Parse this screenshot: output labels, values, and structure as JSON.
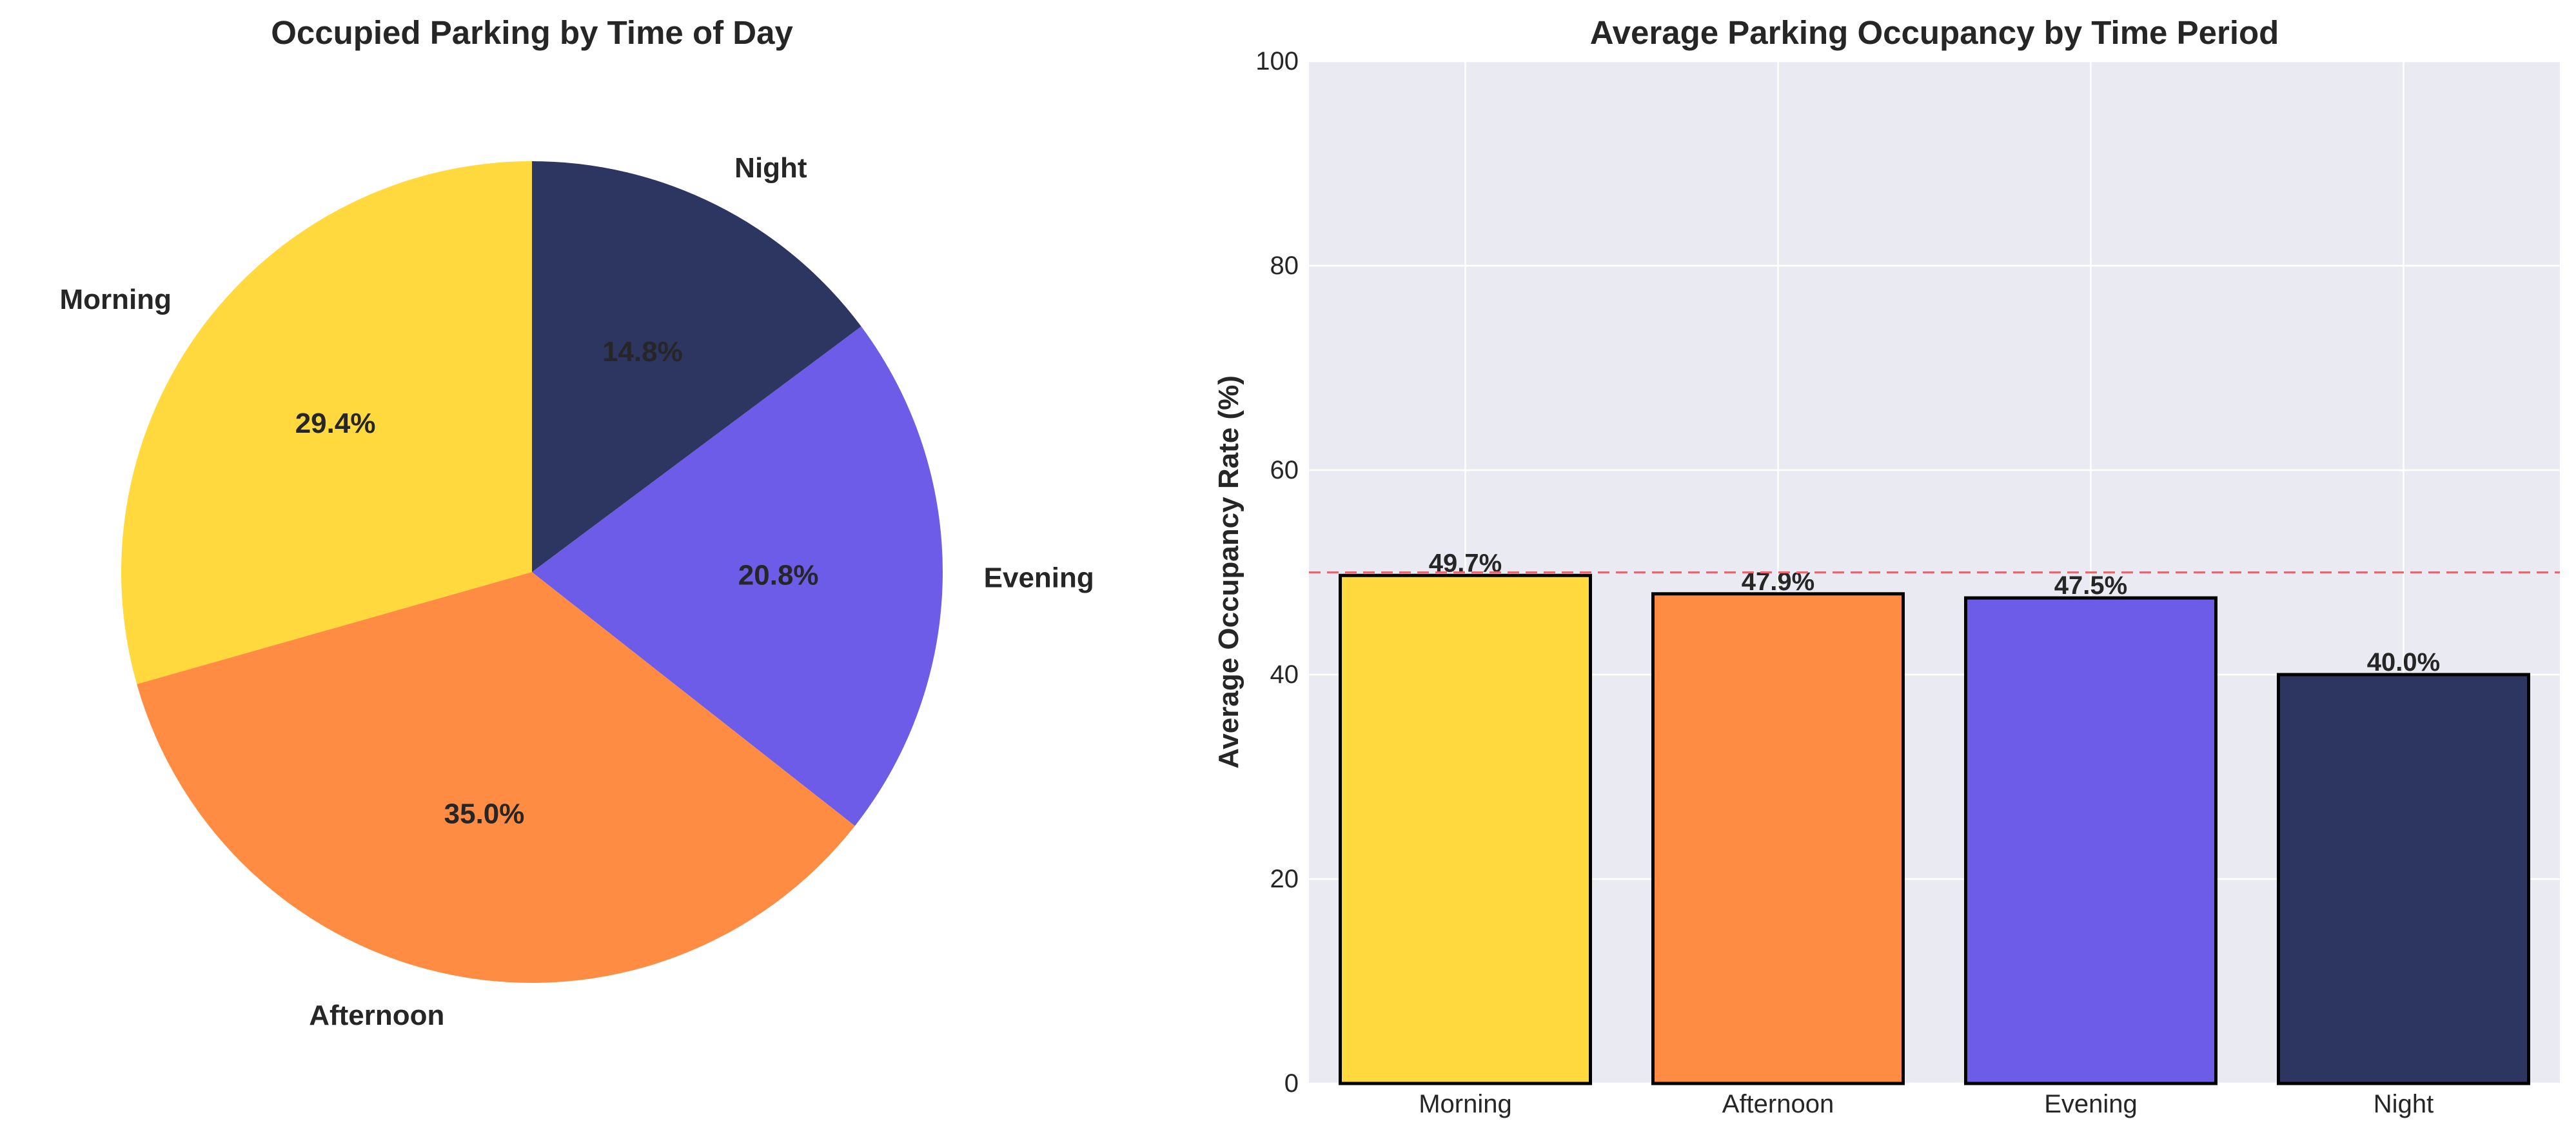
{
  "chart_data": [
    {
      "type": "pie",
      "title": "Occupied Parking by Time of Day",
      "categories": [
        "Morning",
        "Afternoon",
        "Evening",
        "Night"
      ],
      "values": [
        29.4,
        35.0,
        20.8,
        14.8
      ],
      "value_labels": [
        "29.4%",
        "35.0%",
        "20.8%",
        "14.8%"
      ],
      "colors": [
        "#FFD93D",
        "#FF8C42",
        "#6C5CE7",
        "#2D3561"
      ],
      "start_angle_deg": 90,
      "direction": "counterclockwise"
    },
    {
      "type": "bar",
      "title": "Average Parking Occupancy by Time Period",
      "categories": [
        "Morning",
        "Afternoon",
        "Evening",
        "Night"
      ],
      "values": [
        49.7,
        47.9,
        47.5,
        40.0
      ],
      "value_labels": [
        "49.7%",
        "47.9%",
        "47.5%",
        "40.0%"
      ],
      "colors": [
        "#FFD93D",
        "#FF8C42",
        "#6C5CE7",
        "#2D3561"
      ],
      "xlabel": "",
      "ylabel": "Average Occupancy Rate (%)",
      "ylim": [
        0,
        100
      ],
      "yticks": [
        0,
        20,
        40,
        60,
        80,
        100
      ],
      "reference_line": {
        "y": 50,
        "style": "dashed",
        "color": "#E8666F"
      },
      "grid": true,
      "background": "#EAEAF2"
    }
  ]
}
